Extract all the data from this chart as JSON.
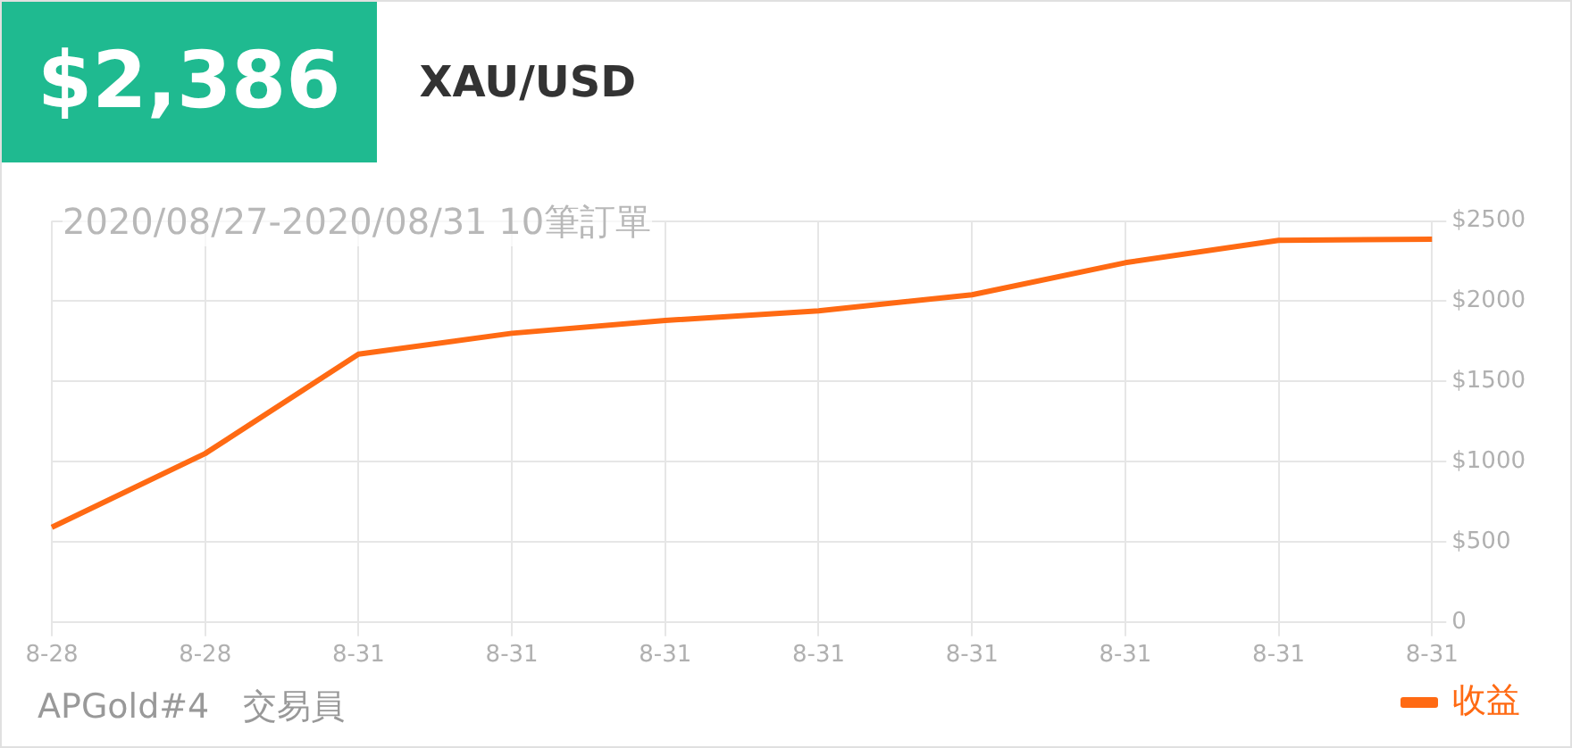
{
  "chart_data": {
    "type": "line",
    "title": "XAU/USD",
    "subtitle": "2020/08/27-2020/08/31 10筆訂單",
    "annotations": [
      "$2,386",
      "APGold#4　交易員"
    ],
    "categories": [
      "8-28",
      "8-28",
      "8-31",
      "8-31",
      "8-31",
      "8-31",
      "8-31",
      "8-31",
      "8-31",
      "8-31"
    ],
    "series": [
      {
        "name": "收益",
        "color": "#ff6a13",
        "values": [
          590,
          1050,
          1670,
          1800,
          1880,
          1940,
          2040,
          2240,
          2380,
          2386
        ]
      }
    ],
    "ylim": [
      0,
      2500
    ],
    "yticks": [
      0,
      {
        "value": 500,
        "label": "$500"
      },
      {
        "value": 1000,
        "label": "$1000"
      },
      {
        "value": 1500,
        "label": "$1500"
      },
      {
        "value": 2000,
        "label": "$2000"
      },
      {
        "value": 2500,
        "label": "$2500"
      }
    ],
    "grid": true,
    "legend": "bottom right",
    "marker": "none",
    "line_style": "solid"
  }
}
